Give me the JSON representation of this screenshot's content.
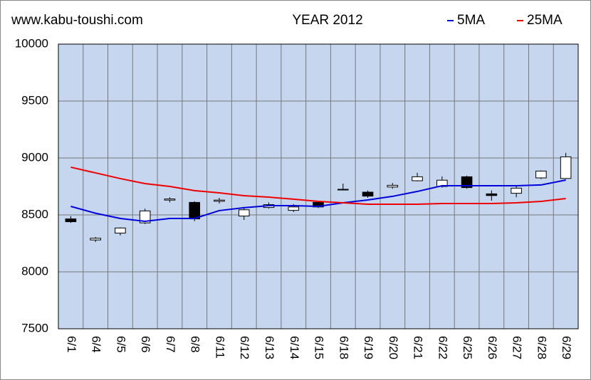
{
  "chart_data": {
    "type": "candlestick",
    "site": "www.kabu-toushi.com",
    "title": "YEAR 2012",
    "categories": [
      "6/1",
      "6/4",
      "6/5",
      "6/6",
      "6/7",
      "6/8",
      "6/11",
      "6/12",
      "6/13",
      "6/14",
      "6/15",
      "6/18",
      "6/19",
      "6/20",
      "6/21",
      "6/22",
      "6/25",
      "6/26",
      "6/27",
      "6/28",
      "6/29"
    ],
    "candles": {
      "open": [
        8465,
        8280,
        8340,
        8430,
        8630,
        8610,
        8620,
        8490,
        8565,
        8540,
        8610,
        8725,
        8700,
        8745,
        8800,
        8750,
        8835,
        8685,
        8690,
        8825,
        8820
      ],
      "high": [
        8490,
        8306,
        8390,
        8555,
        8655,
        8620,
        8650,
        8570,
        8610,
        8595,
        8620,
        8775,
        8715,
        8780,
        8870,
        8838,
        8845,
        8715,
        8755,
        8890,
        9045
      ],
      "low": [
        8430,
        8262,
        8320,
        8420,
        8610,
        8445,
        8600,
        8456,
        8555,
        8525,
        8560,
        8715,
        8650,
        8730,
        8795,
        8740,
        8730,
        8625,
        8655,
        8815,
        8815
      ],
      "close": [
        8440,
        8295,
        8385,
        8535,
        8640,
        8465,
        8630,
        8545,
        8590,
        8570,
        8570,
        8720,
        8665,
        8760,
        8835,
        8805,
        8740,
        8670,
        8735,
        8885,
        9010
      ]
    },
    "series": [
      {
        "name": "5MA",
        "color": "#0000dd",
        "values": [
          8575,
          8515,
          8469,
          8444,
          8469,
          8469,
          8538,
          8563,
          8581,
          8581,
          8575,
          8606,
          8631,
          8663,
          8706,
          8756,
          8756,
          8756,
          8756,
          8763,
          8806
        ]
      },
      {
        "name": "25MA",
        "color": "#ee0000",
        "values": [
          8919,
          8869,
          8819,
          8775,
          8750,
          8713,
          8694,
          8669,
          8656,
          8638,
          8619,
          8606,
          8594,
          8594,
          8594,
          8600,
          8600,
          8600,
          8606,
          8619,
          8644
        ]
      }
    ],
    "ylim": [
      7500,
      10000
    ],
    "yticks": [
      7500,
      8000,
      8500,
      9000,
      9500,
      10000
    ],
    "grid": true,
    "plot_color": "#c6d6ee"
  }
}
